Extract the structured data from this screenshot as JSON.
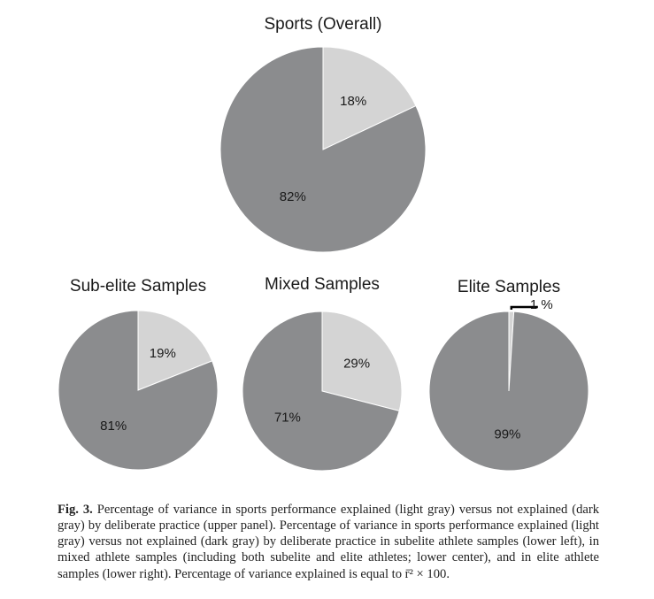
{
  "chart_data": [
    {
      "type": "pie",
      "title": "Sports (Overall)",
      "slices": [
        {
          "label": "18%",
          "value": 18,
          "color": "#d4d4d4"
        },
        {
          "label": "82%",
          "value": 82,
          "color": "#8b8c8e"
        }
      ]
    },
    {
      "type": "pie",
      "title": "Sub-elite Samples",
      "slices": [
        {
          "label": "19%",
          "value": 19,
          "color": "#d4d4d4"
        },
        {
          "label": "81%",
          "value": 81,
          "color": "#8b8c8e"
        }
      ]
    },
    {
      "type": "pie",
      "title": "Mixed Samples",
      "slices": [
        {
          "label": "29%",
          "value": 29,
          "color": "#d4d4d4"
        },
        {
          "label": "71%",
          "value": 71,
          "color": "#8b8c8e"
        }
      ]
    },
    {
      "type": "pie",
      "title": "Elite Samples",
      "slices": [
        {
          "label": "1 %",
          "value": 1,
          "color": "#d4d4d4",
          "callout": true
        },
        {
          "label": "99%",
          "value": 99,
          "color": "#8b8c8e"
        }
      ]
    }
  ],
  "caption": {
    "lead": "Fig. 3.",
    "text": " Percentage of variance in sports performance explained (light gray) versus not explained (dark gray) by deliberate practice (upper panel). Percentage of variance in sports performance explained (light gray) versus not explained (dark gray) by deliberate practice in subelite athlete samples (lower left), in mixed athlete samples (including both subelite and elite athletes; lower center), and in elite athlete samples (lower right). Percentage of variance explained is equal to r̄² × 100."
  }
}
